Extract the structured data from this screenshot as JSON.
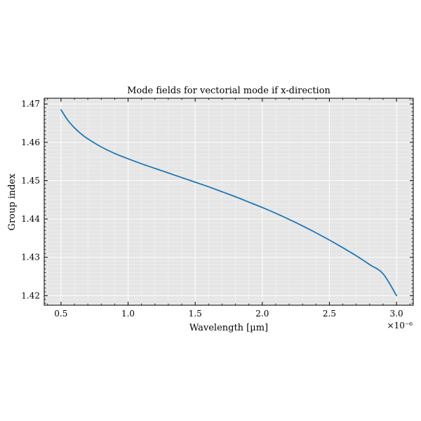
{
  "chart_data": {
    "type": "line",
    "title": "Mode fields for vectorial mode if x-direction",
    "xlabel": "Wavelength [µm]",
    "ylabel": "Group index",
    "x_offset_label": "×10⁻⁶",
    "xlim": [
      0.375,
      3.125
    ],
    "ylim": [
      1.4175,
      1.4715
    ],
    "xticks": [
      0.5,
      1.0,
      1.5,
      2.0,
      2.5,
      3.0
    ],
    "xtick_labels": [
      "0.5",
      "1.0",
      "1.5",
      "2.0",
      "2.5",
      "3.0"
    ],
    "yticks": [
      1.42,
      1.43,
      1.44,
      1.45,
      1.46,
      1.47
    ],
    "ytick_labels": [
      "1.42",
      "1.43",
      "1.44",
      "1.45",
      "1.46",
      "1.47"
    ],
    "grid": true,
    "background": "#e5e5e5",
    "series": [
      {
        "color": "#1f77b4",
        "x": [
          0.5,
          0.55,
          0.6,
          0.65,
          0.7,
          0.8,
          0.9,
          1.0,
          1.1,
          1.2,
          1.3,
          1.4,
          1.5,
          1.6,
          1.7,
          1.8,
          1.9,
          2.0,
          2.1,
          2.2,
          2.3,
          2.4,
          2.5,
          2.6,
          2.7,
          2.8,
          2.9,
          3.0
        ],
        "y": [
          1.4685,
          1.4658,
          1.4638,
          1.4622,
          1.4609,
          1.4588,
          1.4571,
          1.4557,
          1.4544,
          1.4532,
          1.452,
          1.4508,
          1.4496,
          1.4484,
          1.4471,
          1.4458,
          1.4444,
          1.443,
          1.4415,
          1.4399,
          1.4382,
          1.4364,
          1.4345,
          1.4325,
          1.4304,
          1.4281,
          1.4257,
          1.42
        ]
      }
    ]
  }
}
